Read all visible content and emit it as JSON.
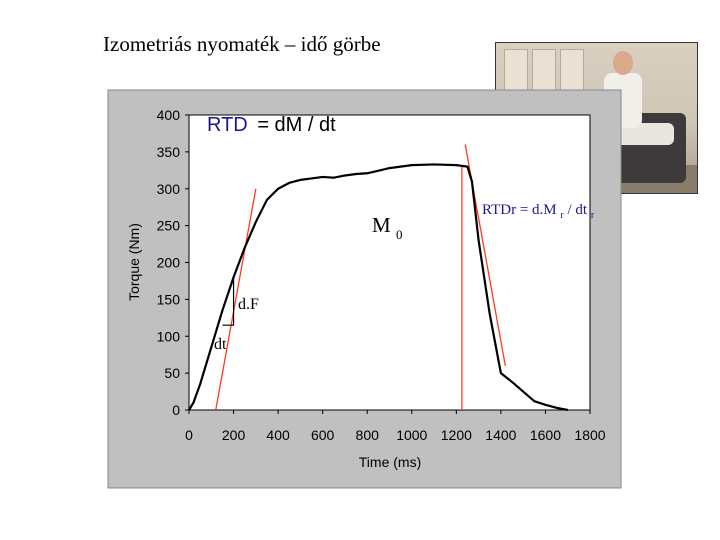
{
  "slide": {
    "title": "Izometriás nyomaték – idő görbe"
  },
  "photo": {
    "subject": "isokinetic dynamometer test photo"
  },
  "annotations": {
    "rtd_label": "RTD",
    "rtd_formula": "= dM / dt",
    "m0_main": "M",
    "m0_sub": "0",
    "df_label": "d.F",
    "dt_label": "dt",
    "rtdr_main": "RTDr = d.M",
    "rtdr_sub1": "r",
    "rtdr_mid": " / dt",
    "rtdr_sub2": "r"
  },
  "colors": {
    "plot_bg": "#c0c0c0",
    "curve": "#000000",
    "tangent": "#ff3b1f",
    "annotation_text": "#1a1a8c"
  },
  "chart_data": {
    "type": "line",
    "xlabel": "Time (ms)",
    "ylabel": "Torque (Nm)",
    "xlim": [
      0,
      1800
    ],
    "ylim": [
      0,
      400
    ],
    "xticks": [
      0,
      200,
      400,
      600,
      800,
      1000,
      1200,
      1400,
      1600,
      1800
    ],
    "yticks": [
      0,
      50,
      100,
      150,
      200,
      250,
      300,
      350,
      400
    ],
    "grid": false,
    "legend": "none",
    "series": [
      {
        "x": [
          0,
          20,
          50,
          100,
          150,
          200,
          250,
          300,
          350,
          400,
          450,
          500,
          550,
          600,
          650,
          700,
          750,
          800,
          900,
          1000,
          1100,
          1200,
          1250,
          1270,
          1300,
          1350,
          1400,
          1450,
          1500,
          1550,
          1600,
          1650,
          1700
        ],
        "y": [
          0,
          10,
          35,
          85,
          135,
          180,
          220,
          255,
          285,
          300,
          308,
          312,
          314,
          316,
          315,
          318,
          320,
          321,
          328,
          332,
          333,
          332,
          330,
          310,
          230,
          130,
          50,
          38,
          25,
          12,
          7,
          3,
          0
        ]
      }
    ],
    "tangents": [
      {
        "name": "rise",
        "from": [
          120,
          0
        ],
        "to": [
          300,
          300
        ]
      },
      {
        "name": "drop",
        "from": [
          1240,
          360
        ],
        "to": [
          1420,
          60
        ]
      },
      {
        "name": "m0-marker",
        "from": [
          1225,
          0
        ],
        "to": [
          1225,
          330
        ]
      }
    ],
    "triangle": {
      "corner": [
        200,
        115
      ],
      "top": [
        200,
        180
      ],
      "left": [
        150,
        115
      ]
    }
  }
}
